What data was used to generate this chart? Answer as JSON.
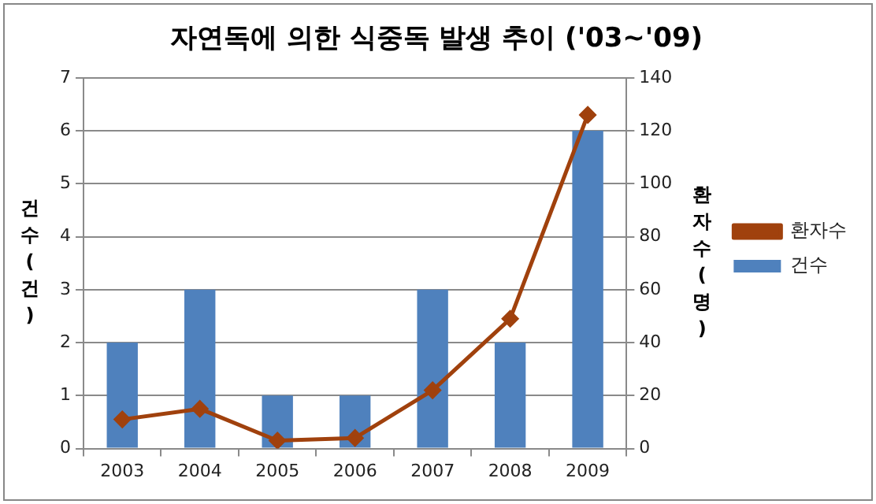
{
  "chart_data": {
    "type": "bar",
    "title": "자연독에 의한 식중독 발생 추이 ('03~'09)",
    "categories": [
      "2003",
      "2004",
      "2005",
      "2006",
      "2007",
      "2008",
      "2009"
    ],
    "series": [
      {
        "name": "건수",
        "color": "#4f81bd",
        "values": [
          2,
          3,
          1,
          1,
          3,
          2,
          6
        ]
      },
      {
        "name": "환자수",
        "type": "line",
        "axis": "y2",
        "color": "#a0410d",
        "values": [
          11,
          15,
          3,
          4,
          22,
          49,
          126
        ]
      }
    ],
    "ylabel": "건수(건)",
    "y2label": "환자수(명)",
    "ylim": [
      0,
      7
    ],
    "yticks": [
      0,
      1,
      2,
      3,
      4,
      5,
      6,
      7
    ],
    "y2lim": [
      0,
      140
    ],
    "y2ticks": [
      0,
      20,
      40,
      60,
      80,
      100,
      120,
      140
    ],
    "grid": "y",
    "legend": "right",
    "marker": "diamond",
    "line_style": "solid"
  }
}
